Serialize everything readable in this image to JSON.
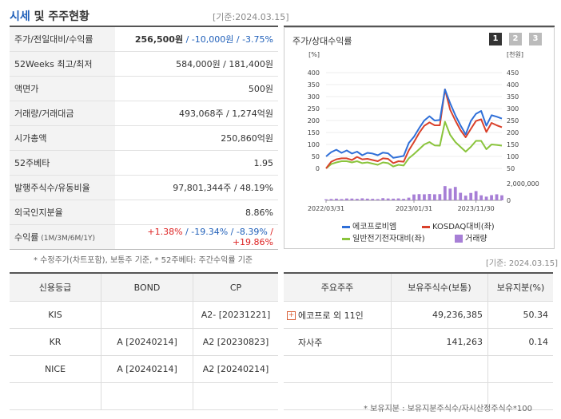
{
  "header": {
    "title_part1": "시세",
    "title_part2": " 및 주주현황",
    "date": "[기준:2024.03.15]"
  },
  "sise_rows": [
    {
      "label": "주가/전일대비/수익률",
      "price": "256,500원",
      "change": " / -10,000원",
      "rate": " / -3.75%"
    },
    {
      "label": "52Weeks 최고/최저",
      "value": "584,000원 / 181,400원"
    },
    {
      "label": "액면가",
      "value": "500원"
    },
    {
      "label": "거래량/거래대금",
      "value": "493,068주 / 1,274억원"
    },
    {
      "label": "시가총액",
      "value": "250,860억원"
    },
    {
      "label": "52주베타",
      "value": "1.95"
    },
    {
      "label": "발행주식수/유동비율",
      "value": "97,801,344주 / 48.19%"
    },
    {
      "label": "외국인지분율",
      "value": "8.86%"
    },
    {
      "label": "수익률",
      "label_sub": " (1M/3M/6M/1Y)",
      "r1": "+1.38%",
      "r2": "/ -19.34%",
      "r3": "/ -8.39%",
      "r4": "/ +19.86%"
    }
  ],
  "note1": "* 수정주가(차트포함), 보통주 기준, * 52주베타: 주간수익률 기준",
  "chart_panel": {
    "title": "주가/상대수익률",
    "buttons": [
      "1",
      "2",
      "3"
    ]
  },
  "chart_data": {
    "type": "line",
    "left_axis_label": "[%]",
    "right_axis_label": "[천원]",
    "ylim": [
      0,
      400
    ],
    "yticks": [
      0,
      50,
      100,
      150,
      200,
      250,
      300,
      350,
      400
    ],
    "yticks_right": [
      50,
      100,
      150,
      200,
      250,
      300,
      350,
      400,
      450
    ],
    "volume_tick_label": "2,000,000",
    "volume_zero_label": "0",
    "x_labels": [
      "2022/03/31",
      "2023/01/31",
      "2023/11/30"
    ],
    "series": [
      {
        "name": "에코프로비엠",
        "color": "#2f6fd8",
        "values": [
          50,
          68,
          78,
          65,
          75,
          62,
          70,
          55,
          65,
          62,
          55,
          66,
          63,
          44,
          48,
          52,
          106,
          132,
          168,
          200,
          218,
          200,
          202,
          330,
          272,
          222,
          180,
          142,
          198,
          228,
          240,
          178,
          222,
          216,
          208
        ]
      },
      {
        "name": "KOSDAQ대비(좌)",
        "color": "#d9412b",
        "values": [
          0,
          28,
          38,
          42,
          42,
          35,
          48,
          38,
          40,
          35,
          30,
          42,
          40,
          22,
          30,
          28,
          75,
          110,
          148,
          178,
          192,
          180,
          180,
          330,
          245,
          200,
          160,
          130,
          165,
          198,
          205,
          152,
          190,
          180,
          172
        ]
      },
      {
        "name": "일반전기전자대비(좌)",
        "color": "#8ac43c",
        "values": [
          0,
          18,
          25,
          30,
          30,
          25,
          30,
          22,
          25,
          20,
          15,
          25,
          22,
          8,
          15,
          12,
          42,
          60,
          80,
          100,
          110,
          96,
          95,
          195,
          140,
          110,
          90,
          70,
          90,
          115,
          115,
          80,
          100,
          98,
          95
        ]
      }
    ],
    "volume": {
      "name": "거래량",
      "color": "#a77fd6",
      "values": [
        120000,
        160000,
        200000,
        150000,
        220000,
        210000,
        180000,
        240000,
        200000,
        180000,
        150000,
        260000,
        220000,
        200000,
        230000,
        180000,
        320000,
        700000,
        740000,
        720000,
        760000,
        720000,
        740000,
        1700000,
        1400000,
        1600000,
        900000,
        560000,
        880000,
        1100000,
        600000,
        440000,
        620000,
        720000,
        600000
      ],
      "max": 2000000
    }
  },
  "credit": {
    "headers": [
      "신용등급",
      "BOND",
      "CP"
    ],
    "rows": [
      [
        "KIS",
        "",
        "A2-  [20231221]"
      ],
      [
        "KR",
        "A  [20240214]",
        "A2  [20230823]"
      ],
      [
        "NICE",
        "A  [20240214]",
        "A2  [20240214]"
      ],
      [
        "",
        "",
        ""
      ]
    ]
  },
  "holders": {
    "date": "[기준: 2024.03.15]",
    "headers": [
      "주요주주",
      "보유주식수(보통)",
      "보유지분(%)"
    ],
    "rows": [
      {
        "name": "에코프로 외 11인",
        "shares": "49,236,385",
        "pct": "50.34",
        "expand": "+"
      },
      {
        "name": "자사주",
        "shares": "141,263",
        "pct": "0.14"
      },
      {
        "name": "",
        "shares": "",
        "pct": ""
      },
      {
        "name": "",
        "shares": "",
        "pct": ""
      }
    ]
  },
  "note2": "* 보유지분 : 보유지분주식수/자시산정주식수*100",
  "colors": {
    "accent": "#1f5fb9",
    "down": "#1f5fb9",
    "up": "#d22222",
    "btn_active": "#333333",
    "btn_inactive": "#bbbbbb"
  }
}
